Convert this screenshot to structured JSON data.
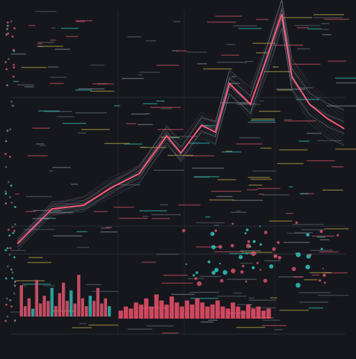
{
  "chart_data": [
    {
      "type": "line",
      "color": "#ff5a7a",
      "xlim": [
        0,
        100
      ],
      "ylim": [
        0,
        100
      ],
      "x": [
        0,
        10.6,
        20.2,
        28.7,
        37.2,
        45.7,
        50,
        56.4,
        60.6,
        64.9,
        71.3,
        76.6,
        80.9,
        84,
        89.4,
        94.7,
        100
      ],
      "values": [
        2.9,
        17.6,
        19.1,
        26.5,
        32.4,
        48.5,
        41.2,
        52.9,
        50,
        70.6,
        61.8,
        82.4,
        100,
        73.5,
        61.8,
        55.9,
        51.5
      ]
    },
    {
      "type": "bar",
      "color": "#e0566e",
      "ylim": [
        0,
        100
      ],
      "values": [
        60,
        20,
        35,
        15,
        70,
        25,
        40,
        30,
        55,
        20,
        45,
        65,
        30,
        50,
        25,
        80,
        35,
        20,
        40,
        30,
        55,
        25,
        35,
        20
      ]
    },
    {
      "type": "bar",
      "color": "#f0506a",
      "ylim": [
        0,
        100
      ],
      "values": [
        20,
        30,
        25,
        40,
        35,
        50,
        30,
        60,
        45,
        35,
        55,
        40,
        30,
        45,
        35,
        50,
        40,
        30,
        35,
        45,
        30,
        25,
        40,
        30,
        20,
        35,
        25,
        30,
        20,
        25
      ]
    }
  ]
}
